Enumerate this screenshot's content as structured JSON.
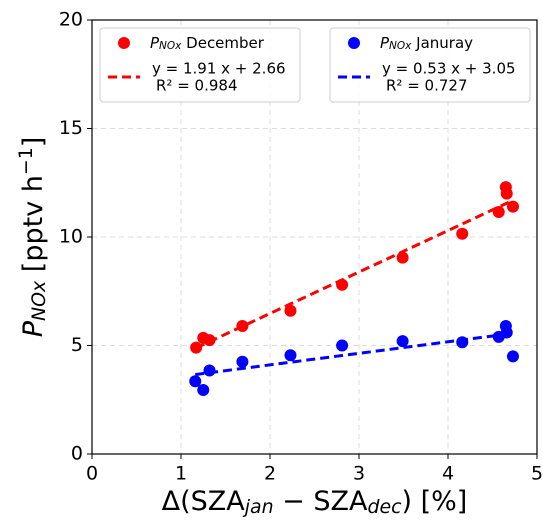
{
  "chart_data": {
    "type": "scatter",
    "xlabel_parts": [
      {
        "text": "Δ(SZA"
      },
      {
        "text": "jan",
        "sub": true
      },
      {
        "text": " − SZA"
      },
      {
        "text": "dec",
        "sub": true
      },
      {
        "text": ") [%]"
      }
    ],
    "ylabel_parts": [
      {
        "text": "P"
      },
      {
        "text": "NOx",
        "sub": true
      },
      {
        "text": " [pptv h"
      },
      {
        "text": "−1",
        "sup": true
      },
      {
        "text": "]"
      }
    ],
    "xlim": [
      0,
      5
    ],
    "xticks": [
      0,
      1,
      2,
      3,
      4,
      5
    ],
    "ylim": [
      0,
      20
    ],
    "yticks": [
      0,
      5,
      10,
      15,
      20
    ],
    "grid": true,
    "series": [
      {
        "symbol": "P",
        "subscript": "NOx",
        "label": " December",
        "color": "#ff0000",
        "x": [
          1.17,
          1.25,
          1.32,
          1.69,
          2.23,
          2.81,
          3.49,
          4.16,
          4.57,
          4.65,
          4.66,
          4.73
        ],
        "values": [
          4.9,
          5.35,
          5.25,
          5.9,
          6.6,
          7.8,
          9.05,
          10.15,
          11.15,
          12.3,
          12.0,
          11.4
        ],
        "fit_label": "y = 1.91 x + 2.66",
        "r2_label": "R² = 0.984",
        "fit_x": [
          1.17,
          4.73
        ],
        "fit_y": [
          4.89,
          11.69
        ]
      },
      {
        "symbol": "P",
        "subscript": "NOx",
        "label": " Januray",
        "color": "#0000ff",
        "x": [
          1.16,
          1.25,
          1.32,
          1.69,
          2.23,
          2.81,
          3.49,
          4.16,
          4.57,
          4.65,
          4.66,
          4.73
        ],
        "values": [
          3.35,
          2.95,
          3.85,
          4.25,
          4.55,
          5.0,
          5.2,
          5.15,
          5.4,
          5.9,
          5.6,
          4.5
        ],
        "fit_label": "y = 0.53 x + 3.05",
        "r2_label": "R² = 0.727",
        "fit_x": [
          1.16,
          4.73
        ],
        "fit_y": [
          3.66,
          5.56
        ]
      }
    ]
  }
}
